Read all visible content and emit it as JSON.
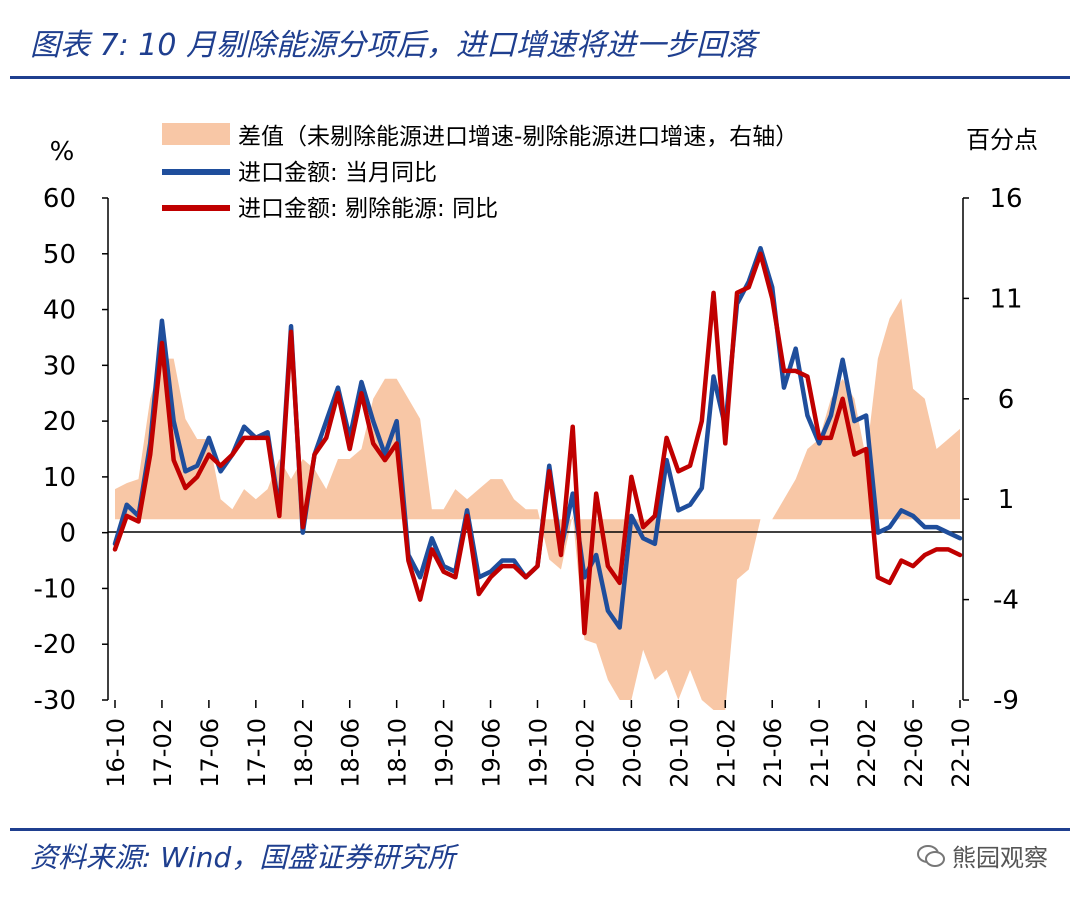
{
  "header": {
    "title": "图表 7:  10 月剔除能源分项后，进口增速将进一步回落"
  },
  "footer": {
    "source": "资料来源:  Wind，国盛证券研究所",
    "watermark": "熊园观察"
  },
  "chart_data": {
    "type": "line+area",
    "left_axis_unit": "%",
    "right_axis_unit": "百分点",
    "ylim_left": [
      -30,
      60
    ],
    "yticks_left": [
      "60",
      "50",
      "40",
      "30",
      "20",
      "10",
      "0",
      "-10",
      "-20",
      "-30"
    ],
    "ylim_right": [
      -9,
      16
    ],
    "yticks_right": [
      "16",
      "11",
      "6",
      "1",
      "-4",
      "-9"
    ],
    "xtick_labels": [
      "16-10",
      "17-02",
      "17-06",
      "17-10",
      "18-02",
      "18-06",
      "18-10",
      "19-02",
      "19-06",
      "19-10",
      "20-02",
      "20-06",
      "20-10",
      "21-02",
      "21-06",
      "21-10",
      "22-02",
      "22-06",
      "22-10"
    ],
    "x": [
      "16-10",
      "16-11",
      "16-12",
      "17-01",
      "17-02",
      "17-03",
      "17-04",
      "17-05",
      "17-06",
      "17-07",
      "17-08",
      "17-09",
      "17-10",
      "17-11",
      "17-12",
      "18-01",
      "18-02",
      "18-03",
      "18-04",
      "18-05",
      "18-06",
      "18-07",
      "18-08",
      "18-09",
      "18-10",
      "18-11",
      "18-12",
      "19-01",
      "19-02",
      "19-03",
      "19-04",
      "19-05",
      "19-06",
      "19-07",
      "19-08",
      "19-09",
      "19-10",
      "19-11",
      "19-12",
      "20-01",
      "20-02",
      "20-03",
      "20-04",
      "20-05",
      "20-06",
      "20-07",
      "20-08",
      "20-09",
      "20-10",
      "20-11",
      "20-12",
      "21-01",
      "21-02",
      "21-03",
      "21-04",
      "21-05",
      "21-06",
      "21-07",
      "21-08",
      "21-09",
      "21-10",
      "21-11",
      "21-12",
      "22-01",
      "22-02",
      "22-03",
      "22-04",
      "22-05",
      "22-06",
      "22-07",
      "22-08",
      "22-09",
      "22-10"
    ],
    "series": [
      {
        "name": "进口金额: 当月同比",
        "axis": "left",
        "color": "#1f4e9c",
        "values": [
          -2,
          5,
          3,
          16,
          38,
          20,
          11,
          12,
          17,
          11,
          14,
          19,
          17,
          18,
          4,
          37,
          0,
          14,
          20,
          26,
          17,
          27,
          20,
          14,
          20,
          -4,
          -8,
          -1,
          -6,
          -7,
          4,
          -8,
          -7,
          -5,
          -5,
          -8,
          -6,
          12,
          -3,
          7,
          -8,
          -4,
          -14,
          -17,
          3,
          -1,
          -2,
          13,
          4,
          5,
          8,
          28,
          19,
          41,
          45,
          51,
          44,
          26,
          33,
          21,
          16,
          21,
          31,
          20,
          21,
          0,
          1,
          4,
          3,
          1,
          1,
          0,
          -1
        ]
      },
      {
        "name": "进口金额: 剔除能源: 同比",
        "axis": "left",
        "color": "#c00000",
        "values": [
          -3,
          3,
          2,
          14,
          34,
          13,
          8,
          10,
          14,
          12,
          14,
          17,
          17,
          17,
          3,
          36,
          1,
          14,
          17,
          25,
          15,
          25,
          16,
          13,
          16,
          -5,
          -12,
          -3,
          -7,
          -8,
          3,
          -11,
          -8,
          -6,
          -6,
          -8,
          -6,
          11,
          -4,
          19,
          -18,
          7,
          -6,
          -9,
          10,
          1,
          3,
          17,
          11,
          12,
          20,
          43,
          16,
          43,
          44,
          50,
          42,
          29,
          29,
          28,
          17,
          17,
          24,
          14,
          15,
          -8,
          -9,
          -5,
          -6,
          -4,
          -3,
          -3,
          -4
        ]
      },
      {
        "name": "差值（未剔除能源进口增速-剔除能源进口增速，右轴）",
        "axis": "right",
        "color": "#f8c7a6",
        "values": [
          1.5,
          1.8,
          2,
          6,
          8,
          8,
          5,
          4,
          4,
          1,
          0.5,
          1.5,
          1,
          1.5,
          3,
          2,
          3,
          2.5,
          1.5,
          3,
          3,
          3.5,
          6,
          7,
          7,
          6,
          5,
          0.5,
          0.5,
          1.5,
          1,
          1.5,
          2,
          2,
          1,
          0.5,
          0.5,
          -2,
          -2.5,
          0.2,
          -6,
          -6.2,
          -8,
          -9,
          -9,
          -6.5,
          -8,
          -7.5,
          -9,
          -7.5,
          -9,
          -9.5,
          -9.5,
          -3,
          -2.5,
          0,
          0,
          1,
          2,
          3.5,
          4,
          6,
          7,
          6,
          3,
          8,
          10,
          11,
          6.5,
          6,
          3.5,
          4,
          4.5
        ]
      }
    ],
    "legend": [
      {
        "label": "差值（未剔除能源进口增速-剔除能源进口增速，右轴）",
        "kind": "area"
      },
      {
        "label": "进口金额: 当月同比",
        "kind": "line"
      },
      {
        "label": "进口金额:  剔除能源:  同比",
        "kind": "line"
      }
    ]
  }
}
